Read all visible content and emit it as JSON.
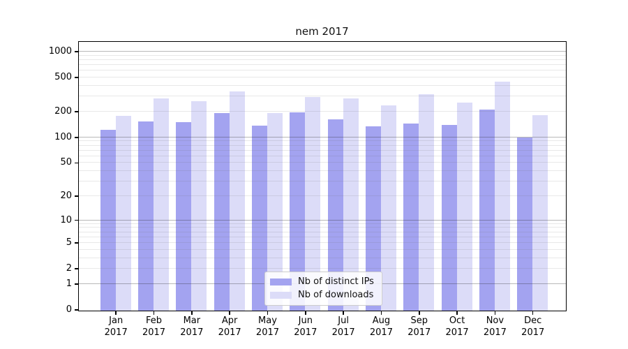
{
  "title": "nem 2017",
  "colors": {
    "distinct_ips": "#a3a3f0",
    "downloads": "#dcdcf8",
    "major_grid": "#b3b3b3",
    "minor_grid": "#e9e9e9",
    "axis": "#000000",
    "legend_border": "#cccccc"
  },
  "legend": {
    "items": [
      {
        "label": "Nb of distinct IPs",
        "series": "distinct_ips"
      },
      {
        "label": "Nb of downloads",
        "series": "downloads"
      }
    ]
  },
  "chart_data": {
    "type": "bar",
    "title": "nem 2017",
    "categories": [
      "Jan 2017",
      "Feb 2017",
      "Mar 2017",
      "Apr 2017",
      "May 2017",
      "Jun 2017",
      "Jul 2017",
      "Aug 2017",
      "Sep 2017",
      "Oct 2017",
      "Nov 2017",
      "Dec 2017"
    ],
    "series": [
      {
        "name": "Nb of distinct IPs",
        "color": "#a3a3f0",
        "values": [
          124,
          156,
          152,
          194,
          139,
          200,
          165,
          136,
          146,
          141,
          214,
          101
        ]
      },
      {
        "name": "Nb of downloads",
        "color": "#dcdcf8",
        "values": [
          181,
          287,
          270,
          350,
          194,
          297,
          288,
          238,
          325,
          257,
          450,
          184
        ]
      }
    ],
    "xlabel": "",
    "ylabel": "",
    "yscale": "log1p",
    "ylim": [
      0,
      1283
    ],
    "yticks": [
      0,
      1,
      2,
      5,
      10,
      20,
      50,
      100,
      200,
      500,
      1000
    ],
    "minor_gridlines": [
      2,
      3,
      4,
      5,
      6,
      7,
      8,
      9,
      20,
      30,
      40,
      50,
      60,
      70,
      80,
      90,
      200,
      300,
      400,
      500,
      600,
      700,
      800,
      900
    ],
    "major_gridlines": [
      1,
      10,
      100,
      1000
    ],
    "grid": true,
    "legend_position": "lower center"
  }
}
